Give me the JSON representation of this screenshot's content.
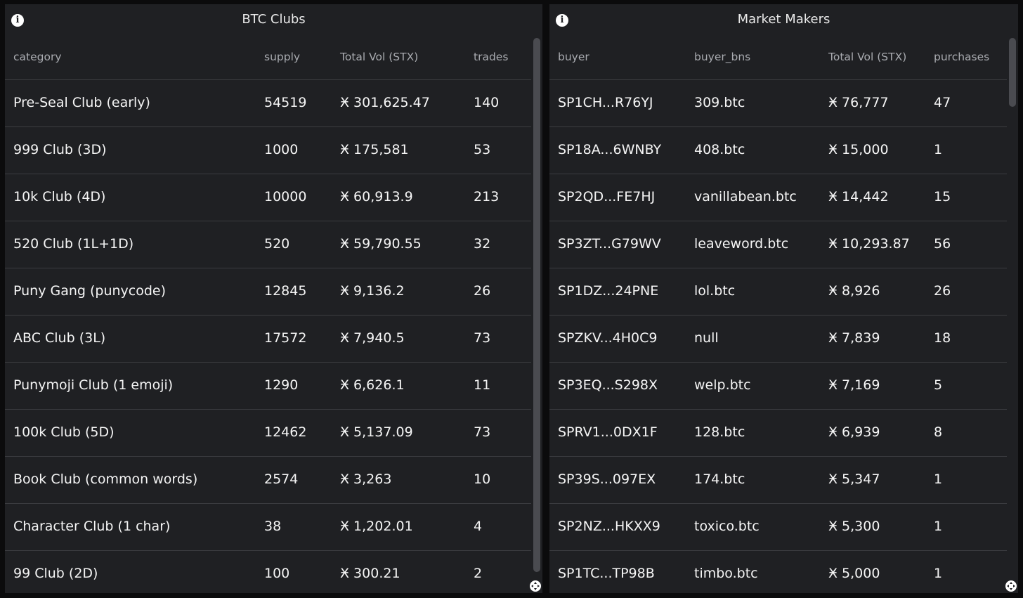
{
  "left_panel": {
    "title": "BTC Clubs",
    "columns": [
      "category",
      "supply",
      "Total Vol (STX)",
      "trades"
    ],
    "rows": [
      [
        "Pre-Seal Club (early)",
        "54519",
        "Ӿ 301,625.47",
        "140"
      ],
      [
        "999 Club (3D)",
        "1000",
        "Ӿ 175,581",
        "53"
      ],
      [
        "10k Club (4D)",
        "10000",
        "Ӿ 60,913.9",
        "213"
      ],
      [
        "520 Club (1L+1D)",
        "520",
        "Ӿ 59,790.55",
        "32"
      ],
      [
        "Puny Gang (punycode)",
        "12845",
        "Ӿ 9,136.2",
        "26"
      ],
      [
        "ABC Club (3L)",
        "17572",
        "Ӿ 7,940.5",
        "73"
      ],
      [
        "Punymoji Club (1 emoji)",
        "1290",
        "Ӿ 6,626.1",
        "11"
      ],
      [
        "100k Club (5D)",
        "12462",
        "Ӿ 5,137.09",
        "73"
      ],
      [
        "Book Club (common words)",
        "2574",
        "Ӿ 3,263",
        "10"
      ],
      [
        "Character Club (1 char)",
        "38",
        "Ӿ 1,202.01",
        "4"
      ],
      [
        "99 Club (2D)",
        "100",
        "Ӿ 300.21",
        "2"
      ]
    ]
  },
  "right_panel": {
    "title": "Market Makers",
    "columns": [
      "buyer",
      "buyer_bns",
      "Total Vol (STX)",
      "purchases"
    ],
    "rows": [
      [
        "SP1CH...R76YJ",
        "309.btc",
        "Ӿ 76,777",
        "47"
      ],
      [
        "SP18A...6WNBY",
        "408.btc",
        "Ӿ 15,000",
        "1"
      ],
      [
        "SP2QD...FE7HJ",
        "vanillabean.btc",
        "Ӿ 14,442",
        "15"
      ],
      [
        "SP3ZT...G79WV",
        "leaveword.btc",
        "Ӿ 10,293.87",
        "56"
      ],
      [
        "SP1DZ...24PNE",
        "lol.btc",
        "Ӿ 8,926",
        "26"
      ],
      [
        "SPZKV...4H0C9",
        "null",
        "Ӿ 7,839",
        "18"
      ],
      [
        "SP3EQ...S298X",
        "welp.btc",
        "Ӿ 7,169",
        "5"
      ],
      [
        "SPRV1...0DX1F",
        "128.btc",
        "Ӿ 6,939",
        "8"
      ],
      [
        "SP39S...097EX",
        "174.btc",
        "Ӿ 5,347",
        "1"
      ],
      [
        "SP2NZ...HKXX9",
        "toxico.btc",
        "Ӿ 5,300",
        "1"
      ],
      [
        "SP1TC...TP98B",
        "timbo.btc",
        "Ӿ 5,000",
        "1"
      ]
    ]
  },
  "icons": {
    "info": "info-icon",
    "resize": "resize-handle-icon"
  }
}
